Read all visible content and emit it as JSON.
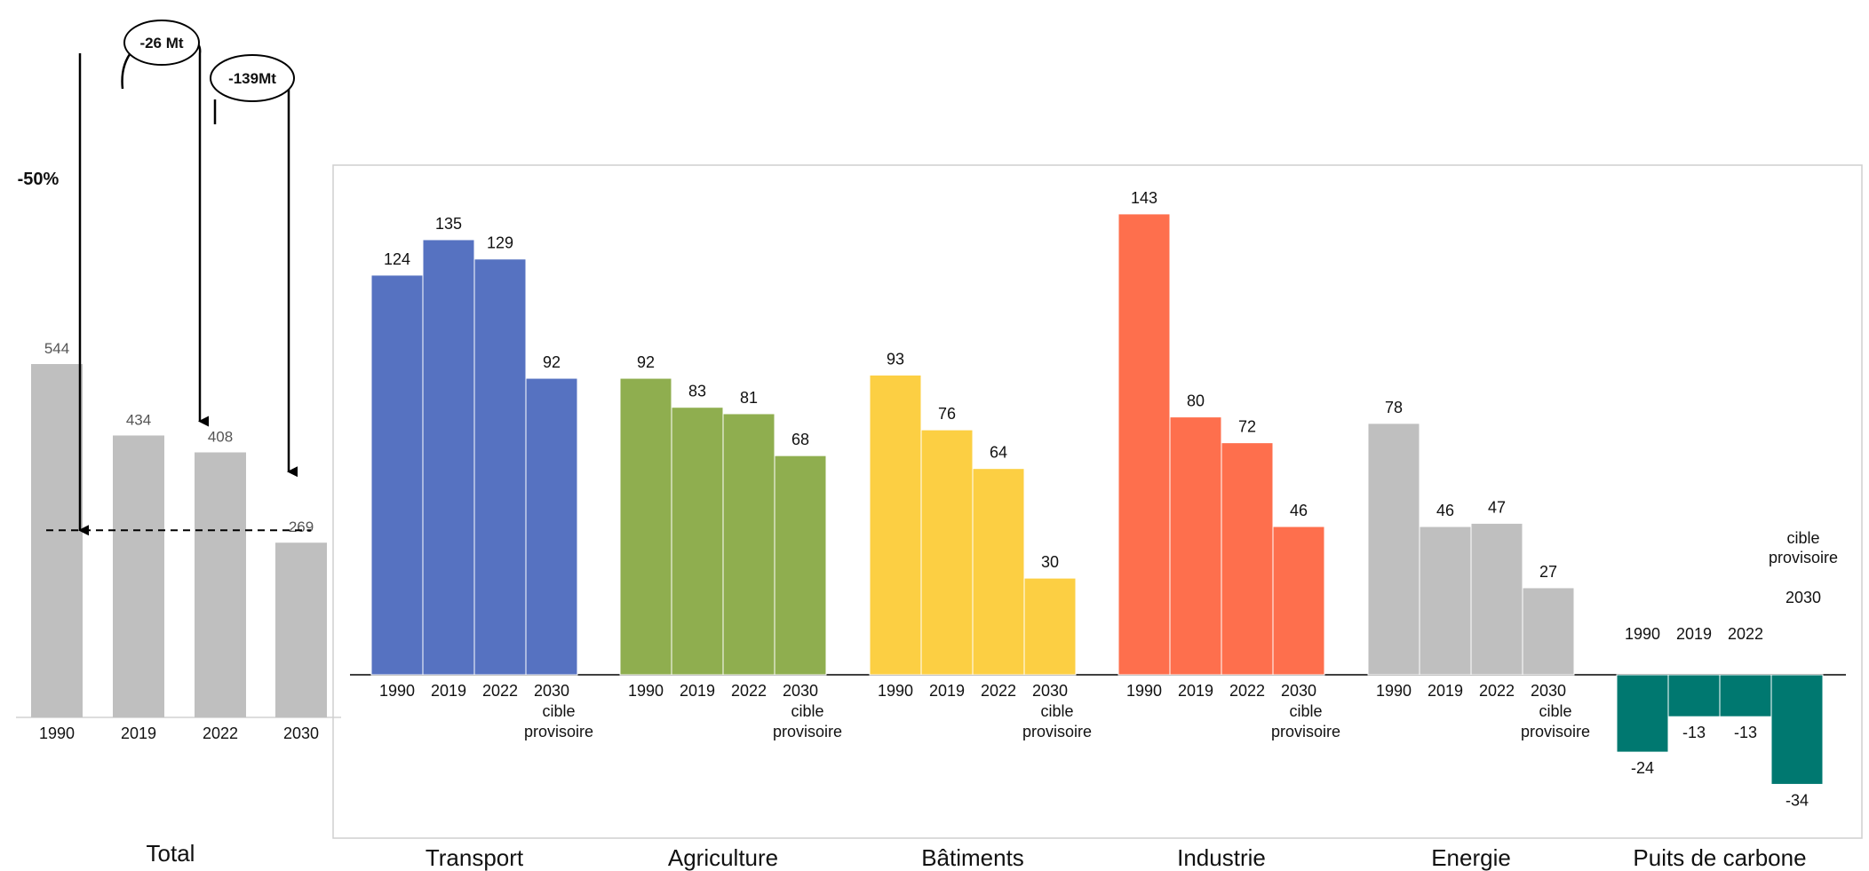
{
  "chart_data": [
    {
      "type": "bar",
      "title": "Total",
      "categories": [
        "1990",
        "2019",
        "2022",
        "2030"
      ],
      "values": [
        544,
        434,
        408,
        269
      ],
      "color": "#bfbfbf",
      "annotations": {
        "reduction_pct": "-50%",
        "delta_2019_2022": "-26 Mt",
        "delta_2022_2030": "-139Mt"
      }
    },
    {
      "type": "bar",
      "year_labels": [
        "1990",
        "2019",
        "2022",
        "2030"
      ],
      "target_note_lines": [
        "cible",
        "provisoire"
      ],
      "groups": [
        {
          "name": "Transport",
          "color": "#5672c1",
          "values": [
            124,
            135,
            129,
            92
          ]
        },
        {
          "name": "Agriculture",
          "color": "#8fae4f",
          "values": [
            92,
            83,
            81,
            68
          ]
        },
        {
          "name": "Bâtiments",
          "color": "#fccf43",
          "values": [
            93,
            76,
            64,
            30
          ]
        },
        {
          "name": "Industrie",
          "color": "#fe6f4d",
          "values": [
            143,
            80,
            72,
            46
          ]
        },
        {
          "name": "Energie",
          "color": "#bfbfbf",
          "values": [
            78,
            46,
            47,
            27
          ]
        },
        {
          "name": "Puits de carbone",
          "color": "#007870",
          "values": [
            -24,
            -13,
            -13,
            -34
          ]
        }
      ],
      "carbon_sink_labels": {
        "years": [
          "1990",
          "2019",
          "2022"
        ],
        "target_lines": [
          "cible",
          "provisoire"
        ],
        "target_year": "2030"
      }
    }
  ]
}
